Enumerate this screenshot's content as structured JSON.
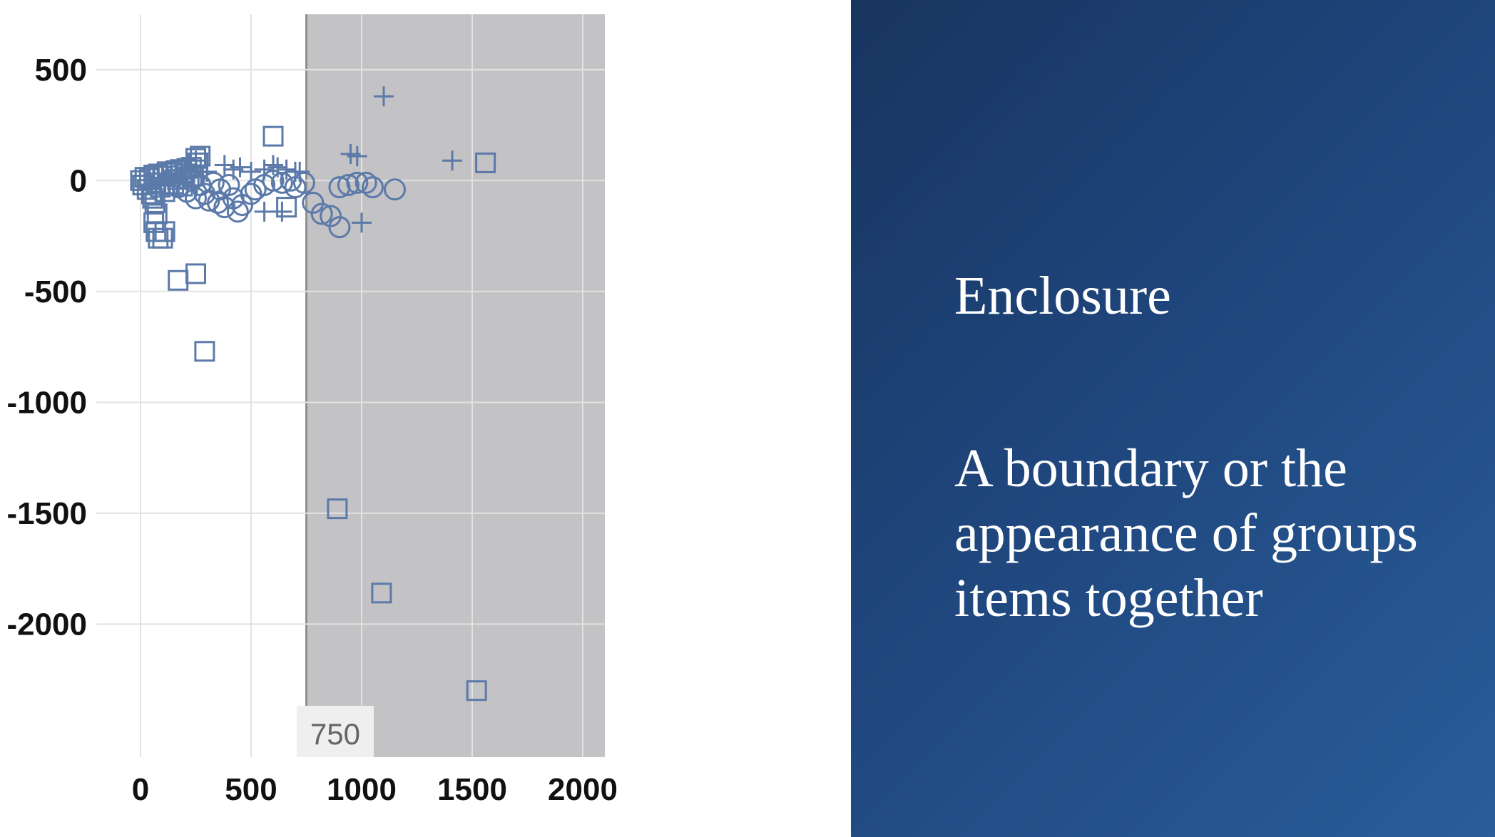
{
  "chart_data": {
    "type": "scatter",
    "title": "",
    "xlabel": "",
    "ylabel": "",
    "xlim": [
      -200,
      2100
    ],
    "ylim": [
      -2600,
      750
    ],
    "xticks": [
      "0",
      "500",
      "1000",
      "1500",
      "2000"
    ],
    "yticks": [
      "500",
      "0",
      "-500",
      "-1000",
      "-1500",
      "-2000"
    ],
    "xtick_values": [
      0,
      500,
      1000,
      1500,
      2000
    ],
    "ytick_values": [
      500,
      0,
      -500,
      -1000,
      -1500,
      -2000
    ],
    "grid": true,
    "marker_color": "#5b7aa9",
    "enclosure": {
      "x_start": 750,
      "x_end": 2100,
      "label": "750",
      "color": "#c3c2c4"
    },
    "series": [
      {
        "marker": "square",
        "points": [
          [
            0,
            0
          ],
          [
            10,
            -20
          ],
          [
            20,
            15
          ],
          [
            30,
            -40
          ],
          [
            40,
            10
          ],
          [
            50,
            -60
          ],
          [
            60,
            25
          ],
          [
            70,
            -10
          ],
          [
            80,
            30
          ],
          [
            90,
            -30
          ],
          [
            100,
            20
          ],
          [
            110,
            -50
          ],
          [
            120,
            40
          ],
          [
            130,
            -20
          ],
          [
            140,
            35
          ],
          [
            150,
            -15
          ],
          [
            160,
            45
          ],
          [
            170,
            5
          ],
          [
            180,
            50
          ],
          [
            190,
            -25
          ],
          [
            200,
            30
          ],
          [
            210,
            55
          ],
          [
            220,
            10
          ],
          [
            230,
            60
          ],
          [
            240,
            20
          ],
          [
            250,
            100
          ],
          [
            260,
            80
          ],
          [
            270,
            110
          ],
          [
            55,
            -80
          ],
          [
            65,
            -100
          ],
          [
            75,
            -150
          ],
          [
            60,
            -190
          ],
          [
            70,
            -230
          ],
          [
            80,
            -260
          ],
          [
            100,
            -260
          ],
          [
            110,
            -230
          ],
          [
            170,
            -450
          ],
          [
            250,
            -420
          ],
          [
            290,
            -770
          ],
          [
            600,
            200
          ],
          [
            660,
            -120
          ],
          [
            890,
            -1480
          ],
          [
            1090,
            -1860
          ],
          [
            1520,
            -2300
          ],
          [
            1560,
            80
          ]
        ]
      },
      {
        "marker": "circle",
        "points": [
          [
            150,
            20
          ],
          [
            170,
            -30
          ],
          [
            190,
            10
          ],
          [
            210,
            -50
          ],
          [
            230,
            0
          ],
          [
            250,
            -80
          ],
          [
            270,
            -20
          ],
          [
            290,
            -60
          ],
          [
            310,
            -90
          ],
          [
            330,
            -10
          ],
          [
            350,
            -100
          ],
          [
            360,
            -40
          ],
          [
            380,
            -120
          ],
          [
            400,
            -20
          ],
          [
            420,
            -80
          ],
          [
            440,
            -140
          ],
          [
            460,
            -110
          ],
          [
            500,
            -60
          ],
          [
            520,
            -40
          ],
          [
            560,
            -20
          ],
          [
            600,
            0
          ],
          [
            640,
            -10
          ],
          [
            680,
            0
          ],
          [
            700,
            -30
          ],
          [
            740,
            -10
          ],
          [
            780,
            -100
          ],
          [
            820,
            -150
          ],
          [
            860,
            -160
          ],
          [
            900,
            -210
          ],
          [
            900,
            -30
          ],
          [
            940,
            -20
          ],
          [
            980,
            -10
          ],
          [
            1020,
            -10
          ],
          [
            1050,
            -30
          ],
          [
            1150,
            -40
          ]
        ]
      },
      {
        "marker": "plus",
        "points": [
          [
            200,
            50
          ],
          [
            250,
            90
          ],
          [
            300,
            40
          ],
          [
            380,
            70
          ],
          [
            420,
            50
          ],
          [
            450,
            60
          ],
          [
            500,
            40
          ],
          [
            560,
            50
          ],
          [
            600,
            70
          ],
          [
            620,
            60
          ],
          [
            660,
            50
          ],
          [
            700,
            40
          ],
          [
            720,
            40
          ],
          [
            560,
            -140
          ],
          [
            640,
            -140
          ],
          [
            1000,
            -190
          ],
          [
            950,
            120
          ],
          [
            980,
            110
          ],
          [
            1100,
            380
          ],
          [
            1410,
            90
          ]
        ]
      }
    ]
  },
  "panel": {
    "title": "Enclosure",
    "text": "A boundary or the appearance of groups items together"
  }
}
